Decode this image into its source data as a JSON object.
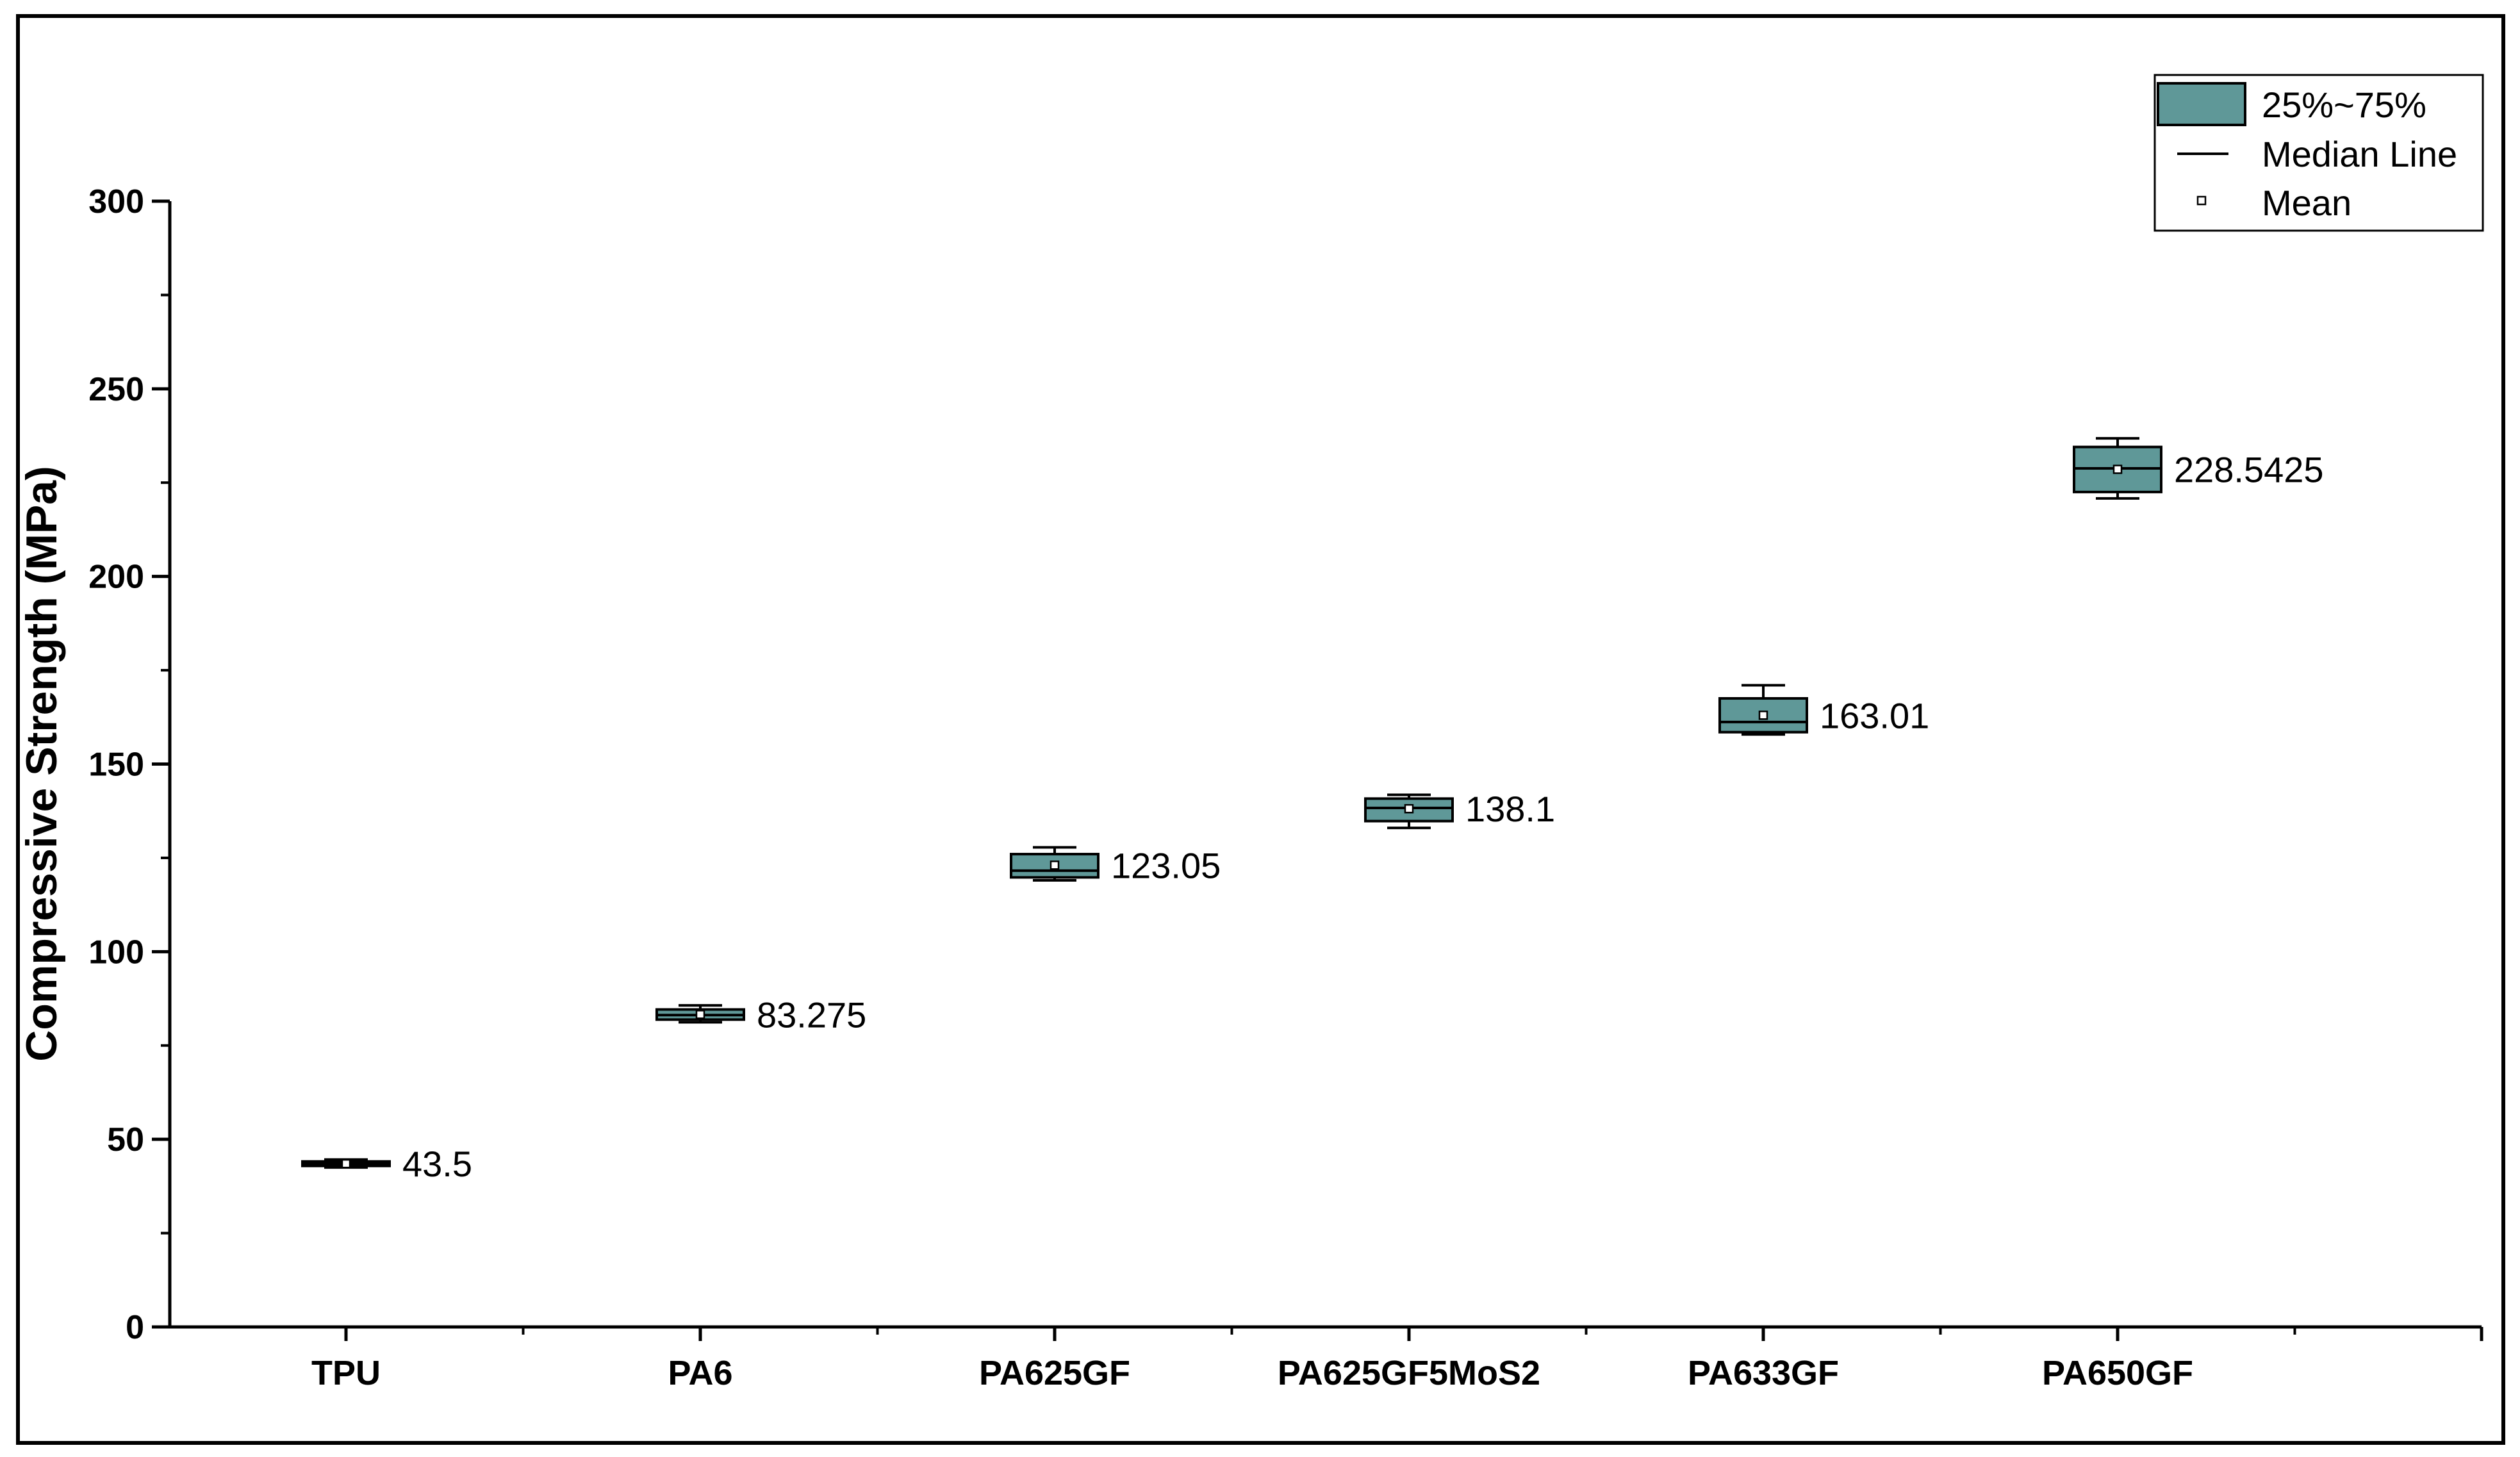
{
  "chart_data": {
    "type": "box",
    "ylabel": "Compressive Strength (MPa)",
    "xlabel": "",
    "ylim": [
      0,
      300
    ],
    "yticks": [
      "0",
      "50",
      "100",
      "150",
      "200",
      "250",
      "300"
    ],
    "categories": [
      "TPU",
      "PA6",
      "PA625GF",
      "PA625GF5MoS2",
      "PA633GF",
      "PA650GF"
    ],
    "boxes": [
      {
        "category": "TPU",
        "min": 42.5,
        "q1": 42.9,
        "median": 43.5,
        "q3": 44.1,
        "max": 44.6,
        "mean": 43.5,
        "mean_label": "43.5"
      },
      {
        "category": "PA6",
        "min": 81.2,
        "q1": 81.9,
        "median": 83.1,
        "q3": 84.6,
        "max": 85.7,
        "mean": 83.275,
        "mean_label": "83.275"
      },
      {
        "category": "PA625GF",
        "min": 119.0,
        "q1": 119.8,
        "median": 121.6,
        "q3": 126.0,
        "max": 127.8,
        "mean": 123.05,
        "mean_label": "123.05"
      },
      {
        "category": "PA625GF5MoS2",
        "min": 133.0,
        "q1": 134.8,
        "median": 138.3,
        "q3": 140.8,
        "max": 141.8,
        "mean": 138.1,
        "mean_label": "138.1"
      },
      {
        "category": "PA633GF",
        "min": 157.9,
        "q1": 158.5,
        "median": 161.2,
        "q3": 167.5,
        "max": 171.0,
        "mean": 163.01,
        "mean_label": "163.01"
      },
      {
        "category": "PA650GF",
        "min": 220.8,
        "q1": 222.5,
        "median": 228.8,
        "q3": 234.5,
        "max": 236.8,
        "mean": 228.5425,
        "mean_label": "228.5425"
      }
    ],
    "legend": {
      "position": "top-right",
      "entries": [
        "25%~75%",
        "Median Line",
        "Mean"
      ]
    },
    "grid": false,
    "box_color": "#5f9898",
    "box_edge_color": "#000000"
  }
}
